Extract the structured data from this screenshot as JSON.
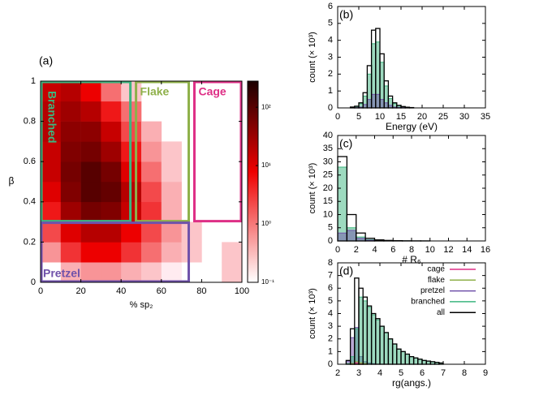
{
  "chart_data": [
    {
      "type": "heatmap",
      "title": "(a)",
      "xlabel": "% sp₂",
      "ylabel": "β",
      "xlim": [
        0,
        100
      ],
      "xticks": [
        0,
        20,
        40,
        60,
        80,
        100
      ],
      "ylim": [
        0,
        1
      ],
      "yticks": [
        0,
        0.2,
        0.4,
        0.6,
        0.8,
        1
      ],
      "x_edges": [
        0,
        10,
        20,
        30,
        40,
        50,
        60,
        70,
        80,
        90,
        100
      ],
      "y_edges": [
        0,
        0.1,
        0.2,
        0.3,
        0.4,
        0.5,
        0.6,
        0.7,
        0.8,
        0.9,
        1
      ],
      "values": [
        [
          null,
          0.3,
          0.5,
          0.5,
          0.3,
          0.2,
          0.1,
          null,
          null,
          0.2
        ],
        [
          0.5,
          3,
          8,
          8,
          3,
          1,
          0.3,
          0.2,
          null,
          0.2
        ],
        [
          2,
          10,
          20,
          20,
          8,
          2,
          0.5,
          0.2,
          null,
          null
        ],
        [
          5,
          30,
          60,
          50,
          15,
          3,
          0.3,
          null,
          null,
          null
        ],
        [
          10,
          50,
          100,
          80,
          20,
          2,
          0.3,
          null,
          null,
          null
        ],
        [
          15,
          60,
          100,
          60,
          10,
          1,
          0.2,
          null,
          null,
          null
        ],
        [
          15,
          50,
          60,
          30,
          5,
          0.5,
          0.2,
          null,
          null,
          null
        ],
        [
          20,
          40,
          40,
          15,
          2,
          0.3,
          null,
          null,
          null,
          null
        ],
        [
          20,
          30,
          20,
          5,
          1,
          null,
          null,
          null,
          null,
          null
        ],
        [
          15,
          20,
          8,
          1,
          0.2,
          null,
          null,
          null,
          null,
          null
        ]
      ],
      "zlim": [
        0.1,
        280
      ],
      "log_color": true,
      "zticks": [
        {
          "value": 0.1,
          "label": "10⁻¹"
        },
        {
          "value": 1,
          "label": "10⁰"
        },
        {
          "value": 10,
          "label": "10¹"
        },
        {
          "value": 100,
          "label": "10²"
        }
      ],
      "regions": [
        {
          "label": "Branched",
          "color": "#3cb67f",
          "x": [
            0,
            45
          ],
          "y": [
            0.3,
            1
          ]
        },
        {
          "label": "Flake",
          "color": "#8fb04a",
          "x": [
            47,
            74
          ],
          "y": [
            0.3,
            1
          ]
        },
        {
          "label": "Cage",
          "color": "#de2f86",
          "x": [
            76,
            100
          ],
          "y": [
            0.3,
            1
          ]
        },
        {
          "label": "Pretzel",
          "color": "#7052aa",
          "x": [
            0,
            74
          ],
          "y": [
            0,
            0.3
          ]
        }
      ]
    },
    {
      "type": "histogram",
      "title": "(b)",
      "xlabel": "Energy (eV)",
      "ylabel": "count (× 10³)",
      "xlim": [
        0,
        35
      ],
      "xticks": [
        0,
        5,
        10,
        15,
        20,
        25,
        30,
        35
      ],
      "ylim": [
        0,
        6
      ],
      "yticks": [
        0,
        1,
        2,
        3,
        4,
        5,
        6
      ],
      "bins": [
        3,
        4,
        5,
        6,
        7,
        8,
        9,
        10,
        11,
        12,
        13,
        14,
        15,
        16,
        17,
        18
      ],
      "series": [
        {
          "color": "#3cb67f",
          "filled": true,
          "values": [
            0.04,
            0.08,
            0.25,
            0.7,
            2.0,
            3.8,
            3.9,
            2.7,
            1.3,
            0.55,
            0.25,
            0.12,
            0.06,
            0.03,
            0.01
          ]
        },
        {
          "color": "#7052aa",
          "filled": true,
          "values": [
            0,
            0.02,
            0.05,
            0.2,
            0.5,
            0.8,
            0.8,
            0.5,
            0.3,
            0.15,
            0.05,
            0.03,
            0.02,
            0.01,
            0
          ]
        },
        {
          "color": "#000000",
          "filled": false,
          "values": [
            0.05,
            0.1,
            0.3,
            0.9,
            2.5,
            4.6,
            4.7,
            3.2,
            1.6,
            0.7,
            0.3,
            0.15,
            0.08,
            0.04,
            0.02
          ]
        }
      ]
    },
    {
      "type": "histogram",
      "title": "(c)",
      "xlabel": "# R₆",
      "ylabel": "count (× 10³)",
      "xlim": [
        0,
        16
      ],
      "xticks": [
        0,
        2,
        4,
        6,
        8,
        10,
        12,
        14,
        16
      ],
      "ylim": [
        0,
        40
      ],
      "yticks": [
        0,
        5,
        10,
        15,
        20,
        25,
        30,
        35,
        40
      ],
      "bins": [
        0,
        1,
        2,
        3,
        4,
        5,
        6,
        7,
        8,
        9,
        10
      ],
      "series": [
        {
          "color": "#3cb67f",
          "filled": true,
          "values": [
            28,
            5,
            1.5,
            0.5,
            0.2,
            0.1,
            0.05,
            0.02,
            0.01,
            0.01
          ]
        },
        {
          "color": "#7052aa",
          "filled": true,
          "values": [
            3,
            4,
            1,
            0.3,
            0.1,
            0.05,
            0.02,
            0.01,
            0,
            0
          ]
        },
        {
          "color": "#000000",
          "filled": false,
          "values": [
            32,
            10,
            3,
            1,
            0.4,
            0.2,
            0.1,
            0.05,
            0.03,
            0.02
          ]
        }
      ]
    },
    {
      "type": "histogram",
      "title": "(d)",
      "xlabel": "rg(angs.)",
      "ylabel": "count (× 10³)",
      "xlim": [
        2,
        9
      ],
      "xticks": [
        2,
        3,
        4,
        5,
        6,
        7,
        8,
        9
      ],
      "ylim": [
        0,
        8
      ],
      "yticks": [
        0,
        1,
        2,
        3,
        4,
        5,
        6,
        7,
        8
      ],
      "bins": [
        2.4,
        2.6,
        2.8,
        3.0,
        3.2,
        3.4,
        3.6,
        3.8,
        4.0,
        4.2,
        4.4,
        4.6,
        4.8,
        5.0,
        5.2,
        5.4,
        5.6,
        5.8,
        6.0,
        6.2,
        6.4,
        6.6,
        6.8,
        7.0
      ],
      "legend": "upper right",
      "series": [
        {
          "name": "cage",
          "color": "#de2f86",
          "filled": false,
          "values": [
            0,
            0.05,
            0.1,
            0.05,
            0,
            0,
            0,
            0,
            0,
            0,
            0,
            0,
            0,
            0,
            0,
            0,
            0,
            0,
            0,
            0,
            0,
            0,
            0
          ]
        },
        {
          "name": "flake",
          "color": "#8fb04a",
          "filled": false,
          "values": [
            0,
            0.05,
            0.2,
            0.1,
            0.05,
            0,
            0,
            0,
            0,
            0,
            0,
            0,
            0,
            0,
            0,
            0,
            0,
            0,
            0,
            0,
            0,
            0,
            0
          ]
        },
        {
          "name": "pretzel",
          "color": "#7052aa",
          "filled": true,
          "values": [
            0.25,
            2.1,
            2.9,
            0.6,
            0.2,
            0.1,
            0.05,
            0,
            0,
            0,
            0,
            0,
            0,
            0,
            0,
            0,
            0,
            0,
            0,
            0,
            0,
            0,
            0
          ]
        },
        {
          "name": "branched",
          "color": "#3cb67f",
          "filled": true,
          "values": [
            0.05,
            0.6,
            2.8,
            5.3,
            5.0,
            4.5,
            3.9,
            3.5,
            3.0,
            2.5,
            2.0,
            1.6,
            1.2,
            1.0,
            0.8,
            0.6,
            0.5,
            0.4,
            0.3,
            0.25,
            0.2,
            0.15,
            0.1
          ]
        },
        {
          "name": "all",
          "color": "#000000",
          "filled": false,
          "values": [
            0.3,
            2.8,
            6.8,
            6.0,
            5.3,
            4.6,
            4.0,
            3.6,
            3.0,
            2.5,
            2.0,
            1.6,
            1.2,
            1.0,
            0.8,
            0.6,
            0.5,
            0.4,
            0.3,
            0.25,
            0.2,
            0.15,
            0.1
          ]
        }
      ]
    }
  ]
}
